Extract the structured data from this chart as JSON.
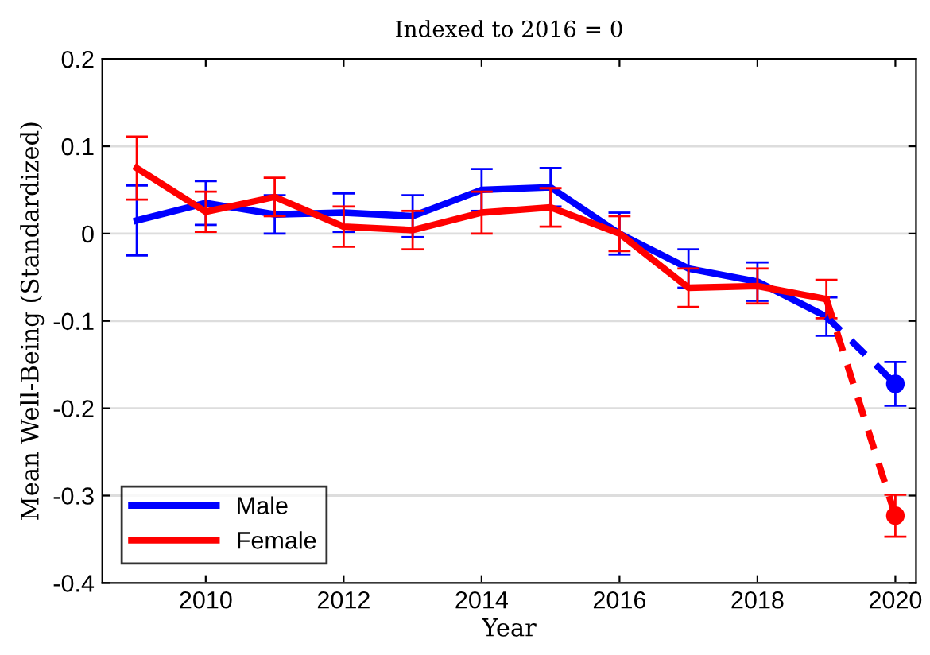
{
  "chart_data": {
    "type": "line",
    "title": "Indexed to 2016 = 0",
    "xlabel": "Year",
    "ylabel": "Mean Well-Being (Standardized)",
    "xlim": [
      2008.5,
      2020.3
    ],
    "xticks": [
      2010,
      2012,
      2014,
      2016,
      2018,
      2020
    ],
    "ylim": [
      -0.4,
      0.2
    ],
    "yticks": [
      -0.4,
      -0.3,
      -0.2,
      -0.1,
      0,
      0.1,
      0.2
    ],
    "grid": "y",
    "legend": "bottom left",
    "series": [
      {
        "name": "Male",
        "color": "#0000ff",
        "x": [
          2009,
          2010,
          2011,
          2012,
          2013,
          2014,
          2015,
          2016,
          2017,
          2018,
          2019
        ],
        "values": [
          0.015,
          0.035,
          0.022,
          0.024,
          0.02,
          0.05,
          0.053,
          0,
          -0.04,
          -0.055,
          -0.095
        ],
        "errors": [
          0.04,
          0.025,
          0.022,
          0.022,
          0.024,
          0.024,
          0.022,
          0.024,
          0.022,
          0.022,
          0.022
        ]
      },
      {
        "name": "Female",
        "color": "#ff0000",
        "x": [
          2009,
          2010,
          2011,
          2012,
          2013,
          2014,
          2015,
          2016,
          2017,
          2018,
          2019
        ],
        "values": [
          0.075,
          0.025,
          0.042,
          0.008,
          0.004,
          0.024,
          0.03,
          0,
          -0.062,
          -0.06,
          -0.075
        ],
        "errors": [
          0.036,
          0.023,
          0.022,
          0.023,
          0.022,
          0.024,
          0.022,
          0.02,
          0.022,
          0.02,
          0.022
        ]
      },
      {
        "color": "#0000ff",
        "x": [
          2019,
          2020
        ],
        "values": [
          -0.095,
          -0.172
        ],
        "line_style": "dashed"
      },
      {
        "color": "#ff0000",
        "x": [
          2019,
          2020
        ],
        "values": [
          -0.075,
          -0.323
        ],
        "line_style": "dashed"
      },
      {
        "type": "scatter",
        "marker": "circle",
        "color": "#0000ff",
        "x": [
          2020
        ],
        "values": [
          -0.172
        ],
        "errors": [
          0.025
        ]
      },
      {
        "type": "scatter",
        "marker": "circle",
        "color": "#ff0000",
        "x": [
          2020
        ],
        "values": [
          -0.323
        ],
        "errors": [
          0.024
        ]
      }
    ]
  }
}
